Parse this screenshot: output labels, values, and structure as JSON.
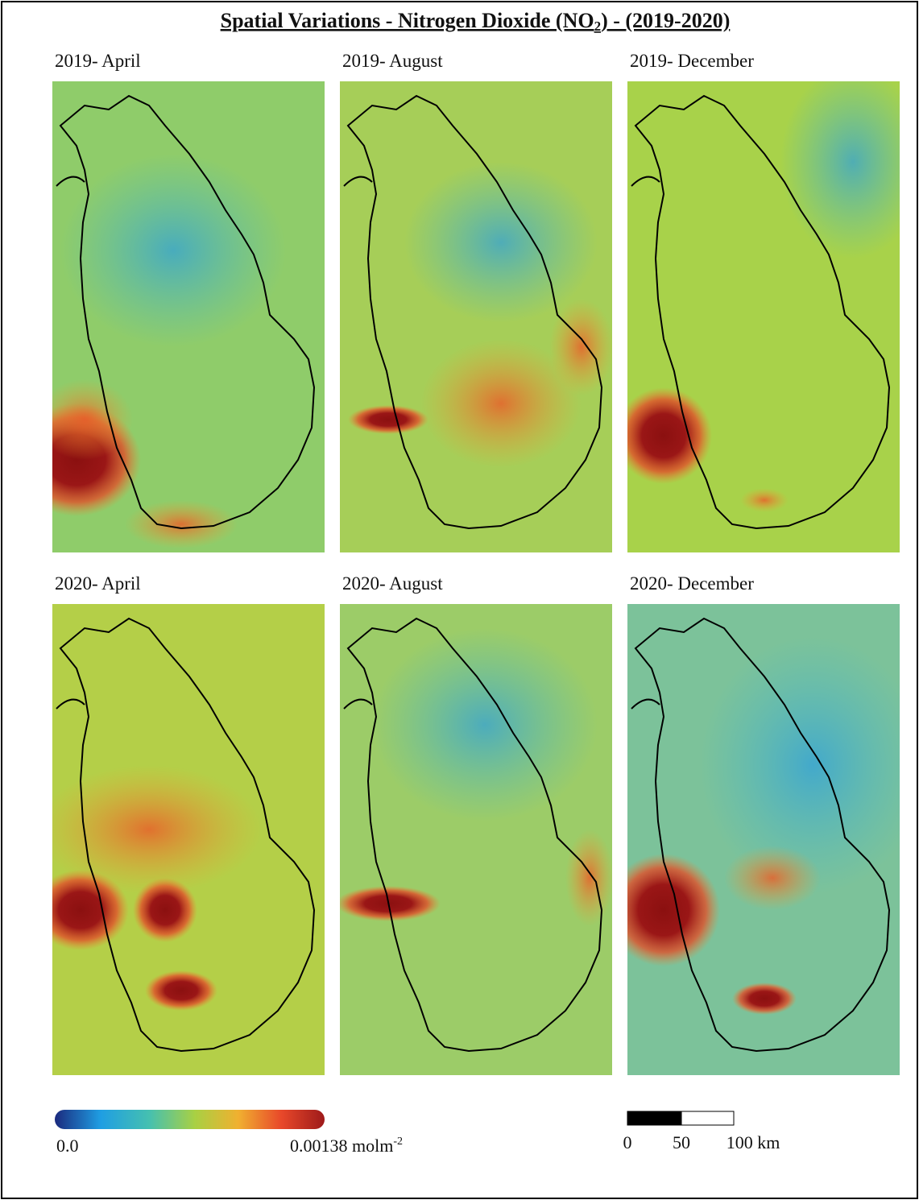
{
  "header": {
    "title": {
      "main": "Spatial Variations - Nitrogen Dioxide (NO",
      "sub": "2",
      "end": ") - (2019-2020)"
    }
  },
  "panels": [
    {
      "label": "2019- April"
    },
    {
      "label": "2019- August"
    },
    {
      "label": "2019- December"
    },
    {
      "label": "2020- April"
    },
    {
      "label": "2020- August"
    },
    {
      "label": "2020- December"
    }
  ],
  "legend": {
    "min_label": "0.0",
    "max_label": "0.00138 molm",
    "max_label_sup": "-2"
  },
  "scale_bar": {
    "labels": [
      "0",
      "50",
      "100 km"
    ]
  }
}
